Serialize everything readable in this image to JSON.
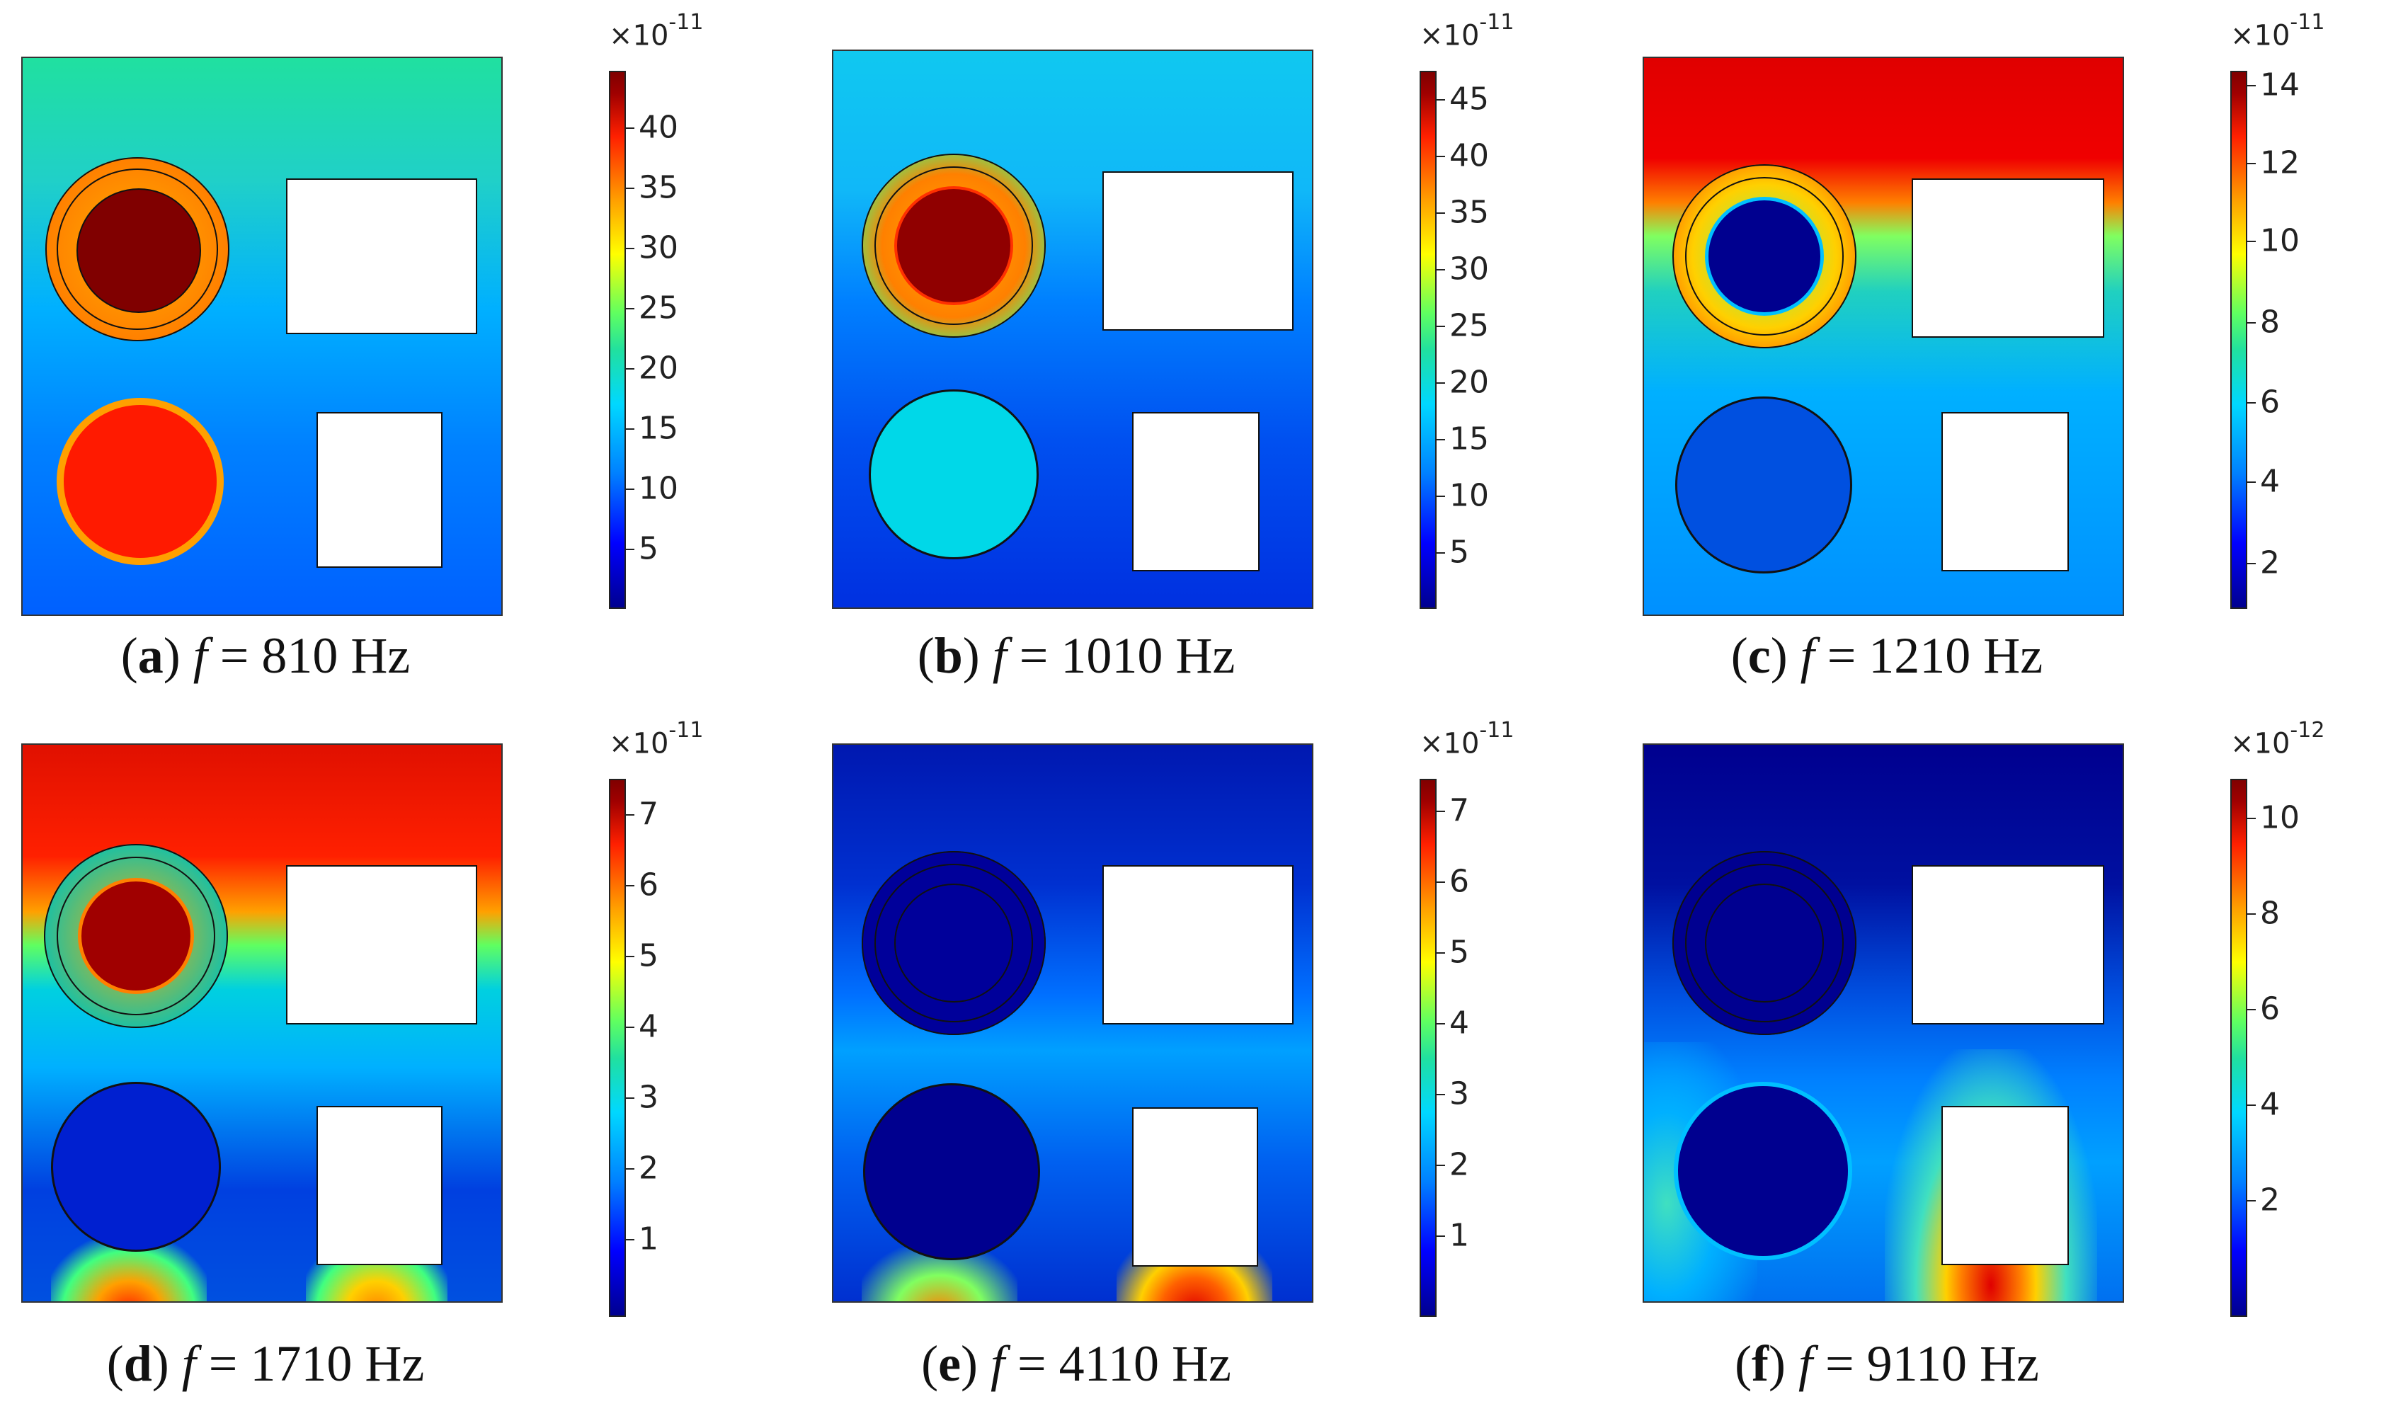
{
  "panels": [
    {
      "letter": "a",
      "f_symbol": "f",
      "eq": "=",
      "freq": "810 Hz",
      "multiplier": "×10",
      "exponent": "-11",
      "ticks": [
        "40",
        "35",
        "30",
        "25",
        "20",
        "15",
        "10",
        "5"
      ]
    },
    {
      "letter": "b",
      "f_symbol": "f",
      "eq": "=",
      "freq": "1010 Hz",
      "multiplier": "×10",
      "exponent": "-11",
      "ticks": [
        "45",
        "40",
        "35",
        "30",
        "25",
        "20",
        "15",
        "10",
        "5"
      ]
    },
    {
      "letter": "c",
      "f_symbol": "f",
      "eq": "=",
      "freq": "1210 Hz",
      "multiplier": "×10",
      "exponent": "-11",
      "ticks": [
        "14",
        "12",
        "10",
        "8",
        "6",
        "4",
        "2"
      ]
    },
    {
      "letter": "d",
      "f_symbol": "f",
      "eq": "=",
      "freq": "1710 Hz",
      "multiplier": "×10",
      "exponent": "-11",
      "ticks": [
        "7",
        "6",
        "5",
        "4",
        "3",
        "2",
        "1"
      ]
    },
    {
      "letter": "e",
      "f_symbol": "f",
      "eq": "=",
      "freq": "4110 Hz",
      "multiplier": "×10",
      "exponent": "-11",
      "ticks": [
        "7",
        "6",
        "5",
        "4",
        "3",
        "2",
        "1"
      ]
    },
    {
      "letter": "f",
      "f_symbol": "f",
      "eq": "=",
      "freq": "9110 Hz",
      "multiplier": "×10",
      "exponent": "-12",
      "ticks": [
        "10",
        "8",
        "6",
        "4",
        "2"
      ]
    }
  ],
  "colors": {
    "panel_a": {
      "bg_top": "#20e0a0",
      "bg_mid": "#00b0ff",
      "bg_bottom": "#0060ff",
      "circle1": "#800000",
      "circle2": "#ff1a00"
    },
    "panel_b": {
      "bg_top": "#10c8f0",
      "bg_mid": "#0060ff",
      "bg_bottom": "#0030e0",
      "circle1": "#900000",
      "circle2": "#00d8e8"
    },
    "panel_c": {
      "bg_top": "#e00000",
      "bg_mid": "#20d0c0",
      "bg_bottom": "#0090ff",
      "circle1": "#00008f",
      "circle2": "#0050e0"
    },
    "panel_d": {
      "bg_top": "#e01000",
      "bg_mid": "#00b0ff",
      "bg_bottom": "#0040e0",
      "circle1": "#a00000",
      "circle2": "#0020d0"
    },
    "panel_e": {
      "bg_top": "#0018b0",
      "bg_mid": "#0060f0",
      "bg_bottom": "#0030d0",
      "circle1": "#00008f",
      "circle2": "#00008f"
    },
    "panel_f": {
      "bg_top": "#00008f",
      "bg_mid": "#0050e0",
      "bg_bottom": "#0080ff",
      "circle1": "#000090",
      "circle2": "#00008f"
    }
  }
}
